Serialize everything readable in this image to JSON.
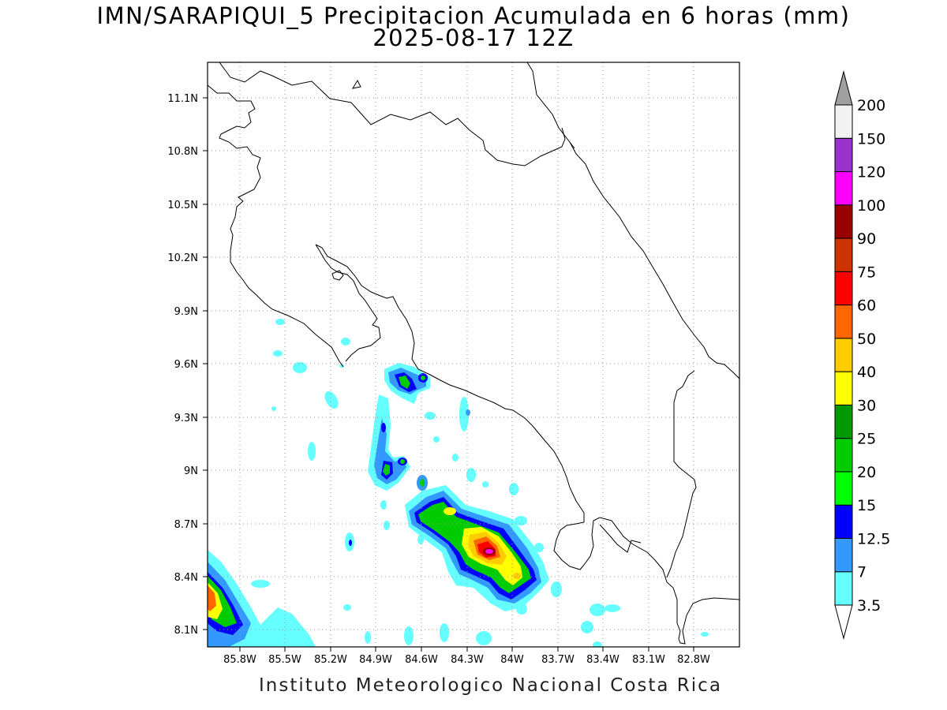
{
  "title": {
    "line1": "IMN/SARAPIQUI_5 Precipitacion Acumulada en 6 horas (mm)",
    "line2": "2025-08-17 12Z"
  },
  "footer": "Instituto Meteorologico Nacional Costa Rica",
  "map": {
    "lon_ticks": [
      "85.8W",
      "85.5W",
      "85.2W",
      "84.9W",
      "84.6W",
      "84.3W",
      "84W",
      "83.7W",
      "83.4W",
      "83.1W",
      "82.8W"
    ],
    "lat_ticks": [
      "11.1N",
      "10.8N",
      "10.5N",
      "10.2N",
      "9.9N",
      "9.6N",
      "9.3N",
      "9N",
      "8.7N",
      "8.4N",
      "8.1N"
    ],
    "grid": "dotted",
    "coastline_color": "#000000"
  },
  "colorbar": {
    "levels": [
      "3.5",
      "7",
      "12.5",
      "15",
      "20",
      "25",
      "30",
      "40",
      "50",
      "60",
      "75",
      "90",
      "100",
      "120",
      "150",
      "200"
    ],
    "colors": [
      "#66ffff",
      "#3399ff",
      "#0000ff",
      "#00ff00",
      "#00cc00",
      "#009900",
      "#ffff00",
      "#ffcc00",
      "#ff6600",
      "#ff0000",
      "#cc3300",
      "#990000",
      "#ff00ff",
      "#9933cc",
      "#f2f2f2",
      "#a0a0a0"
    ],
    "arrows": "both ends"
  }
}
